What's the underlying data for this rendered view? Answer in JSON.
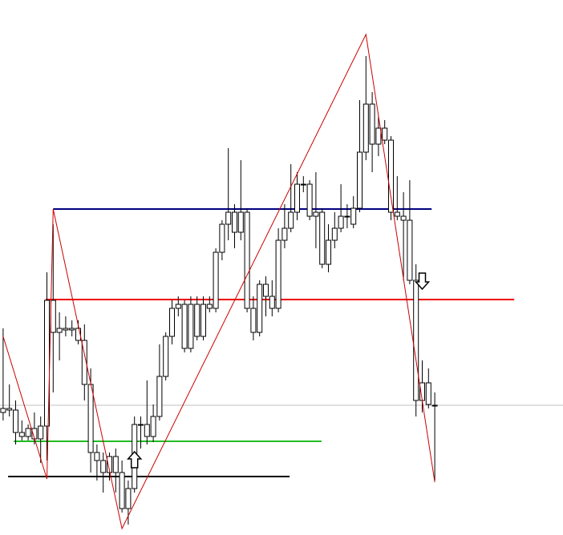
{
  "chart_data": {
    "type": "candlestick",
    "xlim": [
      -0.5,
      89.5
    ],
    "ylim": [
      0,
      668
    ],
    "x": [
      0,
      1,
      2,
      3,
      4,
      5,
      6,
      7,
      8,
      9,
      10,
      11,
      12,
      13,
      14,
      15,
      16,
      17,
      18,
      19,
      20,
      21,
      22,
      23,
      24,
      25,
      26,
      27,
      28,
      29,
      30,
      31,
      32,
      33,
      34,
      35,
      36,
      37,
      38,
      39,
      40,
      41,
      42,
      43,
      44,
      45,
      46,
      47,
      48,
      49,
      50,
      51,
      52,
      53,
      54,
      55,
      56,
      57,
      58,
      59,
      60,
      61,
      62,
      63,
      64,
      65,
      66,
      67,
      68,
      69
    ],
    "open": [
      153,
      158,
      156,
      128,
      123,
      133,
      120,
      136,
      293,
      253,
      258,
      256,
      258,
      243,
      188,
      103,
      93,
      78,
      98,
      78,
      33,
      58,
      138,
      138,
      123,
      148,
      198,
      248,
      283,
      288,
      233,
      288,
      248,
      288,
      283,
      353,
      388,
      403,
      378,
      403,
      283,
      253,
      313,
      298,
      283,
      368,
      383,
      403,
      438,
      438,
      398,
      403,
      338,
      368,
      383,
      398,
      388,
      408,
      478,
      538,
      488,
      508,
      493,
      403,
      398,
      393,
      318,
      168,
      190,
      162
    ],
    "high": [
      258,
      188,
      168,
      143,
      138,
      153,
      148,
      328,
      388,
      278,
      273,
      268,
      268,
      263,
      208,
      113,
      103,
      103,
      108,
      93,
      68,
      148,
      148,
      193,
      163,
      238,
      253,
      293,
      298,
      293,
      298,
      298,
      298,
      298,
      358,
      393,
      483,
      413,
      468,
      408,
      298,
      318,
      323,
      318,
      383,
      413,
      463,
      453,
      448,
      443,
      453,
      408,
      388,
      403,
      438,
      413,
      423,
      543,
      598,
      553,
      523,
      518,
      498,
      448,
      428,
      443,
      338,
      218,
      208,
      178
    ],
    "low": [
      143,
      148,
      113,
      118,
      118,
      113,
      90,
      93,
      178,
      218,
      248,
      248,
      238,
      168,
      78,
      68,
      53,
      68,
      53,
      28,
      13,
      53,
      108,
      113,
      116,
      143,
      193,
      238,
      273,
      228,
      228,
      243,
      243,
      278,
      278,
      343,
      368,
      358,
      368,
      278,
      243,
      248,
      273,
      273,
      278,
      358,
      378,
      393,
      428,
      393,
      358,
      333,
      328,
      358,
      378,
      383,
      383,
      403,
      468,
      453,
      473,
      488,
      393,
      393,
      318,
      313,
      148,
      153,
      158,
      68
    ],
    "close": [
      158,
      156,
      128,
      123,
      133,
      120,
      136,
      293,
      253,
      258,
      256,
      258,
      243,
      188,
      103,
      93,
      78,
      98,
      78,
      33,
      58,
      138,
      138,
      123,
      148,
      198,
      248,
      283,
      288,
      233,
      288,
      248,
      288,
      283,
      353,
      388,
      403,
      378,
      403,
      283,
      253,
      313,
      298,
      283,
      368,
      383,
      403,
      438,
      438,
      398,
      403,
      338,
      368,
      383,
      398,
      398,
      408,
      478,
      538,
      488,
      508,
      493,
      403,
      398,
      393,
      318,
      168,
      190,
      163,
      162
    ],
    "candle_color": "#ffffff",
    "wick_color": "#000000",
    "zigzag": {
      "color": "#cc0000",
      "x": [
        0,
        7,
        8,
        19,
        58,
        69
      ],
      "values": [
        248,
        70,
        407,
        8,
        625,
        66
      ]
    },
    "levels": [
      {
        "value": 407,
        "color": "#000080",
        "x": [
          8,
          68.5
        ]
      },
      {
        "value": 294,
        "color": "#ee0000",
        "x": [
          6.8,
          81.7
        ]
      },
      {
        "value": 117,
        "color": "#22bb22",
        "x": [
          1.7,
          50.9
        ]
      },
      {
        "value": 73,
        "color": "#000000",
        "x": [
          0.8,
          45.8
        ]
      },
      {
        "value": 162,
        "color": "#c0c0c0",
        "x": [
          -0.5,
          89.5
        ]
      }
    ],
    "signals": [
      {
        "x": 21,
        "y": 93,
        "direction": "up"
      },
      {
        "x": 67,
        "y": 318,
        "direction": "down"
      }
    ]
  }
}
